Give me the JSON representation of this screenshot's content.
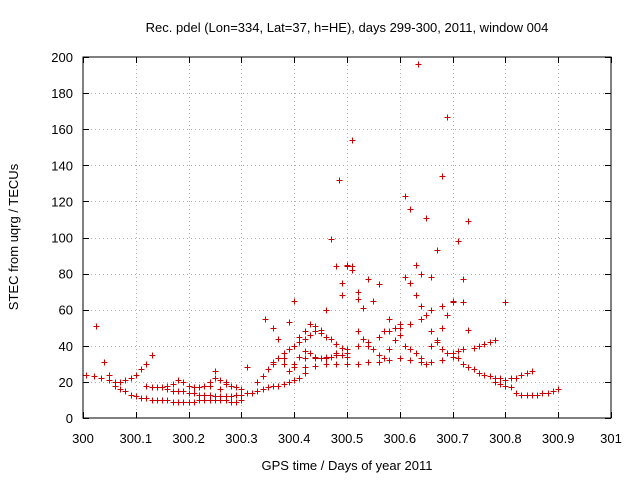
{
  "chart_data": {
    "type": "scatter",
    "title": "Rec. pdel (Lon=334, Lat=37, h=HE), days 299-300, 2011, window 004",
    "xlabel": "GPS time / Days of year 2011",
    "ylabel": "STEC from uqrg / TECUs",
    "xlim": [
      300,
      301
    ],
    "ylim": [
      0,
      200
    ],
    "xticks": [
      300,
      300.1,
      300.2,
      300.3,
      300.4,
      300.5,
      300.6,
      300.7,
      300.8,
      300.9,
      301
    ],
    "xtick_labels": [
      "300",
      "300.1",
      "300.2",
      "300.3",
      "300.4",
      "300.5",
      "300.6",
      "300.7",
      "300.8",
      "300.9",
      "301"
    ],
    "yticks": [
      0,
      20,
      40,
      60,
      80,
      100,
      120,
      140,
      160,
      180,
      200
    ],
    "ytick_labels": [
      "0",
      "20",
      "40",
      "60",
      "80",
      "100",
      "120",
      "140",
      "160",
      "180",
      "200"
    ],
    "grid": true,
    "marker": "+",
    "color": "#cc0000",
    "series": [
      {
        "name": "STEC",
        "points": [
          [
            300.005,
            24
          ],
          [
            300.02,
            23
          ],
          [
            300.035,
            22
          ],
          [
            300.05,
            21
          ],
          [
            300.06,
            20
          ],
          [
            300.07,
            20
          ],
          [
            300.08,
            21
          ],
          [
            300.09,
            22
          ],
          [
            300.1,
            24
          ],
          [
            300.11,
            27
          ],
          [
            300.12,
            30
          ],
          [
            300.13,
            35
          ],
          [
            300.025,
            51
          ],
          [
            300.04,
            31
          ],
          [
            300.05,
            24
          ],
          [
            300.06,
            18
          ],
          [
            300.07,
            16
          ],
          [
            300.08,
            15
          ],
          [
            300.09,
            13
          ],
          [
            300.1,
            12
          ],
          [
            300.11,
            11
          ],
          [
            300.12,
            11
          ],
          [
            300.13,
            10
          ],
          [
            300.14,
            10
          ],
          [
            300.15,
            10
          ],
          [
            300.16,
            10
          ],
          [
            300.17,
            9
          ],
          [
            300.18,
            9
          ],
          [
            300.19,
            9
          ],
          [
            300.2,
            9
          ],
          [
            300.21,
            9
          ],
          [
            300.22,
            10
          ],
          [
            300.23,
            10
          ],
          [
            300.24,
            10
          ],
          [
            300.25,
            10
          ],
          [
            300.26,
            10
          ],
          [
            300.27,
            10
          ],
          [
            300.28,
            9
          ],
          [
            300.29,
            9
          ],
          [
            300.3,
            10
          ],
          [
            300.12,
            18
          ],
          [
            300.13,
            17
          ],
          [
            300.14,
            17
          ],
          [
            300.15,
            17
          ],
          [
            300.16,
            16
          ],
          [
            300.17,
            15
          ],
          [
            300.18,
            15
          ],
          [
            300.19,
            15
          ],
          [
            300.2,
            14
          ],
          [
            300.21,
            14
          ],
          [
            300.22,
            13
          ],
          [
            300.23,
            13
          ],
          [
            300.24,
            13
          ],
          [
            300.25,
            12
          ],
          [
            300.26,
            12
          ],
          [
            300.27,
            12
          ],
          [
            300.28,
            12
          ],
          [
            300.29,
            13
          ],
          [
            300.3,
            13
          ],
          [
            300.31,
            14
          ],
          [
            300.32,
            14
          ],
          [
            300.33,
            15
          ],
          [
            300.34,
            16
          ],
          [
            300.35,
            17
          ],
          [
            300.36,
            18
          ],
          [
            300.37,
            18
          ],
          [
            300.38,
            19
          ],
          [
            300.39,
            20
          ],
          [
            300.4,
            21
          ],
          [
            300.41,
            22
          ],
          [
            300.42,
            25
          ],
          [
            300.16,
            18
          ],
          [
            300.17,
            19
          ],
          [
            300.18,
            21
          ],
          [
            300.19,
            20
          ],
          [
            300.2,
            18
          ],
          [
            300.21,
            17
          ],
          [
            300.22,
            17
          ],
          [
            300.23,
            18
          ],
          [
            300.24,
            20
          ],
          [
            300.25,
            22
          ],
          [
            300.26,
            21
          ],
          [
            300.27,
            20
          ],
          [
            300.28,
            18
          ],
          [
            300.29,
            17
          ],
          [
            300.25,
            26
          ],
          [
            300.24,
            18
          ],
          [
            300.26,
            16
          ],
          [
            300.27,
            19
          ],
          [
            300.3,
            16
          ],
          [
            300.31,
            28
          ],
          [
            300.33,
            20
          ],
          [
            300.34,
            23
          ],
          [
            300.35,
            27
          ],
          [
            300.36,
            30
          ],
          [
            300.37,
            33
          ],
          [
            300.38,
            36
          ],
          [
            300.39,
            38
          ],
          [
            300.4,
            40
          ],
          [
            300.41,
            42
          ],
          [
            300.42,
            44
          ],
          [
            300.43,
            46
          ],
          [
            300.44,
            48
          ],
          [
            300.45,
            47
          ],
          [
            300.46,
            45
          ],
          [
            300.47,
            44
          ],
          [
            300.48,
            41
          ],
          [
            300.49,
            39
          ],
          [
            300.5,
            36
          ],
          [
            300.345,
            55
          ],
          [
            300.36,
            50
          ],
          [
            300.37,
            44
          ],
          [
            300.38,
            33
          ],
          [
            300.39,
            26
          ],
          [
            300.4,
            30
          ],
          [
            300.41,
            34
          ],
          [
            300.42,
            37
          ],
          [
            300.43,
            36
          ],
          [
            300.44,
            34
          ],
          [
            300.45,
            33
          ],
          [
            300.46,
            33
          ],
          [
            300.47,
            34
          ],
          [
            300.48,
            35
          ],
          [
            300.49,
            35
          ],
          [
            300.5,
            34
          ],
          [
            300.39,
            53
          ],
          [
            300.4,
            65
          ],
          [
            300.41,
            45
          ],
          [
            300.42,
            48
          ],
          [
            300.43,
            52
          ],
          [
            300.44,
            51
          ],
          [
            300.45,
            49
          ],
          [
            300.46,
            60
          ],
          [
            300.47,
            99
          ],
          [
            300.48,
            84
          ],
          [
            300.485,
            132
          ],
          [
            300.49,
            75
          ],
          [
            300.5,
            84
          ],
          [
            300.51,
            154
          ],
          [
            300.51,
            84
          ],
          [
            300.52,
            70
          ],
          [
            300.36,
            31
          ],
          [
            300.38,
            30
          ],
          [
            300.4,
            28
          ],
          [
            300.42,
            28
          ],
          [
            300.44,
            29
          ],
          [
            300.46,
            30
          ],
          [
            300.48,
            30
          ],
          [
            300.5,
            30
          ],
          [
            300.52,
            30
          ],
          [
            300.54,
            31
          ],
          [
            300.56,
            31
          ],
          [
            300.58,
            32
          ],
          [
            300.6,
            33
          ],
          [
            300.62,
            32
          ],
          [
            300.64,
            31
          ],
          [
            300.66,
            31
          ],
          [
            300.68,
            32
          ],
          [
            300.7,
            34
          ],
          [
            300.42,
            33
          ],
          [
            300.44,
            33
          ],
          [
            300.46,
            34
          ],
          [
            300.48,
            36
          ],
          [
            300.5,
            38
          ],
          [
            300.52,
            40
          ],
          [
            300.54,
            42
          ],
          [
            300.56,
            45
          ],
          [
            300.58,
            48
          ],
          [
            300.6,
            50
          ],
          [
            300.62,
            52
          ],
          [
            300.64,
            55
          ],
          [
            300.66,
            60
          ],
          [
            300.68,
            62
          ],
          [
            300.7,
            64
          ],
          [
            300.72,
            64
          ],
          [
            300.49,
            68
          ],
          [
            300.5,
            85
          ],
          [
            300.51,
            82
          ],
          [
            300.52,
            66
          ],
          [
            300.53,
            61
          ],
          [
            300.54,
            77
          ],
          [
            300.55,
            65
          ],
          [
            300.56,
            74
          ],
          [
            300.57,
            48
          ],
          [
            300.58,
            55
          ],
          [
            300.59,
            50
          ],
          [
            300.6,
            52
          ],
          [
            300.61,
            123
          ],
          [
            300.62,
            116
          ],
          [
            300.63,
            85
          ],
          [
            300.635,
            196
          ],
          [
            300.64,
            80
          ],
          [
            300.65,
            111
          ],
          [
            300.66,
            78
          ],
          [
            300.67,
            93
          ],
          [
            300.68,
            134
          ],
          [
            300.69,
            167
          ],
          [
            300.7,
            65
          ],
          [
            300.71,
            98
          ],
          [
            300.72,
            77
          ],
          [
            300.73,
            109
          ],
          [
            300.52,
            48
          ],
          [
            300.53,
            44
          ],
          [
            300.54,
            40
          ],
          [
            300.55,
            38
          ],
          [
            300.56,
            35
          ],
          [
            300.57,
            33
          ],
          [
            300.58,
            38
          ],
          [
            300.59,
            43
          ],
          [
            300.6,
            46
          ],
          [
            300.61,
            40
          ],
          [
            300.62,
            38
          ],
          [
            300.63,
            36
          ],
          [
            300.64,
            33
          ],
          [
            300.65,
            30
          ],
          [
            300.61,
            78
          ],
          [
            300.62,
            75
          ],
          [
            300.63,
            68
          ],
          [
            300.64,
            62
          ],
          [
            300.65,
            57
          ],
          [
            300.66,
            48
          ],
          [
            300.67,
            43
          ],
          [
            300.68,
            50
          ],
          [
            300.69,
            57
          ],
          [
            300.66,
            40
          ],
          [
            300.67,
            42
          ],
          [
            300.68,
            38
          ],
          [
            300.69,
            36
          ],
          [
            300.7,
            36
          ],
          [
            300.71,
            37
          ],
          [
            300.72,
            38
          ],
          [
            300.73,
            49
          ],
          [
            300.74,
            39
          ],
          [
            300.75,
            40
          ],
          [
            300.76,
            41
          ],
          [
            300.77,
            42
          ],
          [
            300.78,
            43
          ],
          [
            300.8,
            64
          ],
          [
            300.7,
            36
          ],
          [
            300.71,
            33
          ],
          [
            300.72,
            30
          ],
          [
            300.73,
            28
          ],
          [
            300.74,
            27
          ],
          [
            300.75,
            25
          ],
          [
            300.76,
            24
          ],
          [
            300.77,
            23
          ],
          [
            300.78,
            22
          ],
          [
            300.79,
            22
          ],
          [
            300.8,
            21
          ],
          [
            300.81,
            22
          ],
          [
            300.82,
            22
          ],
          [
            300.83,
            24
          ],
          [
            300.84,
            25
          ],
          [
            300.85,
            26
          ],
          [
            300.78,
            20
          ],
          [
            300.79,
            19
          ],
          [
            300.8,
            18
          ],
          [
            300.81,
            17
          ],
          [
            300.82,
            14
          ],
          [
            300.83,
            13
          ],
          [
            300.84,
            13
          ],
          [
            300.85,
            13
          ],
          [
            300.86,
            13
          ],
          [
            300.87,
            14
          ],
          [
            300.88,
            14
          ],
          [
            300.89,
            15
          ],
          [
            300.9,
            16
          ]
        ]
      }
    ]
  }
}
